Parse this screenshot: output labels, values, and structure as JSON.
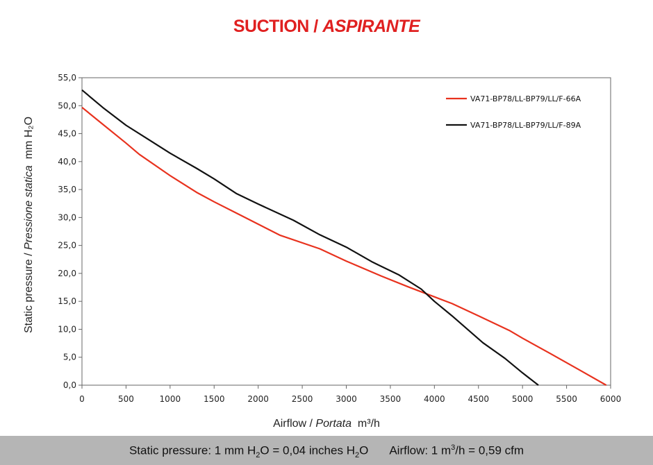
{
  "title": {
    "main": "SUCTION / ",
    "italic": "ASPIRANTE"
  },
  "xlabel": {
    "main": "Airflow / ",
    "italic": "Portata",
    "unit": "m³/h"
  },
  "ylabel": {
    "main": "Static pressure / ",
    "italic": "Pressione statica",
    "unit": "mm H₂O"
  },
  "footer": {
    "pressure_prefix": "Static pressure: 1 mm H",
    "pressure_sub1": "2",
    "pressure_mid": "O = 0,04 inches H",
    "pressure_sub2": "2",
    "pressure_end": "O",
    "airflow_prefix": "Airflow: 1 m",
    "airflow_sup": "3",
    "airflow_end": "/h = 0,59 cfm"
  },
  "chart_data": {
    "type": "line",
    "xlabel": "Airflow / Portata m³/h",
    "ylabel": "Static pressure / Pressione statica mm H₂O",
    "xlim": [
      0,
      6000
    ],
    "ylim": [
      0,
      55
    ],
    "xticks": [
      "0",
      "500",
      "1000",
      "1500",
      "2000",
      "2500",
      "3000",
      "3500",
      "4000",
      "4500",
      "5000",
      "5500",
      "6000"
    ],
    "yticks": [
      "0,0",
      "5,0",
      "10,0",
      "15,0",
      "20,0",
      "25,0",
      "30,0",
      "35,0",
      "40,0",
      "45,0",
      "50,0",
      "55,0"
    ],
    "grid": false,
    "legend_position": "top-right",
    "series": [
      {
        "name": "VA71-BP78/LL-BP79/LL/F-66A",
        "color": "#e8321e",
        "x": [
          0,
          250,
          500,
          650,
          1000,
          1300,
          1500,
          1750,
          2000,
          2250,
          2700,
          3000,
          3400,
          3700,
          4000,
          4200,
          4500,
          4850,
          5000,
          5300,
          5650,
          5950
        ],
        "y": [
          49.7,
          46.5,
          43.3,
          41.3,
          37.5,
          34.5,
          32.8,
          30.8,
          28.8,
          26.8,
          24.4,
          22.2,
          19.5,
          17.6,
          15.8,
          14.6,
          12.4,
          9.8,
          8.4,
          5.8,
          2.7,
          0.0
        ]
      },
      {
        "name": "VA71-BP78/LL-BP79/LL/F-89A",
        "color": "#111111",
        "x": [
          0,
          250,
          500,
          750,
          1000,
          1300,
          1500,
          1750,
          2000,
          2400,
          2700,
          3000,
          3300,
          3600,
          3850,
          4000,
          4200,
          4550,
          4800,
          5000,
          5180
        ],
        "y": [
          52.8,
          49.5,
          46.5,
          44.0,
          41.5,
          38.8,
          36.9,
          34.3,
          32.4,
          29.5,
          26.9,
          24.7,
          22.0,
          19.7,
          17.2,
          15.0,
          12.4,
          7.6,
          4.8,
          2.2,
          0.0
        ]
      }
    ]
  }
}
